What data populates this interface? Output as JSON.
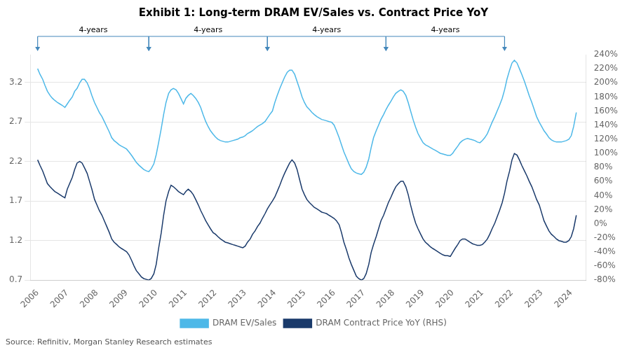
{
  "chart_data": {
    "type": "line",
    "title": "Exhibit 1: Long-term DRAM EV/Sales vs. Contract Price YoY",
    "source": "Source: Refinitiv, Morgan Stanley Research estimates",
    "annotations": [
      {
        "text": "4-years",
        "x1": 2006.0,
        "x2": 2009.75
      },
      {
        "text": "4-years",
        "x1": 2009.75,
        "x2": 2013.75
      },
      {
        "text": "4-years",
        "x1": 2013.75,
        "x2": 2017.75
      },
      {
        "text": "4-years",
        "x1": 2017.75,
        "x2": 2021.75
      }
    ],
    "xlim": [
      2005.75,
      2024.5
    ],
    "xticks": [
      2006,
      2007,
      2008,
      2009,
      2010,
      2011,
      2012,
      2013,
      2014,
      2015,
      2016,
      2017,
      2018,
      2019,
      2020,
      2021,
      2022,
      2023,
      2024
    ],
    "ylim": [
      0.7,
      3.55
    ],
    "yticks": [
      0.7,
      1.2,
      1.7,
      2.2,
      2.7,
      3.2
    ],
    "y2lim": [
      -0.8,
      2.4
    ],
    "y2ticks": [
      {
        "value": -0.8,
        "label": "-80%"
      },
      {
        "value": -0.6,
        "label": "-60%"
      },
      {
        "value": -0.4,
        "label": "-40%"
      },
      {
        "value": -0.2,
        "label": "-20%"
      },
      {
        "value": 0.0,
        "label": "0%"
      },
      {
        "value": 0.2,
        "label": "20%"
      },
      {
        "value": 0.4,
        "label": "40%"
      },
      {
        "value": 0.6,
        "label": "60%"
      },
      {
        "value": 0.8,
        "label": "80%"
      },
      {
        "value": 1.0,
        "label": "100%"
      },
      {
        "value": 1.2,
        "label": "120%"
      },
      {
        "value": 1.4,
        "label": "140%"
      },
      {
        "value": 1.6,
        "label": "160%"
      },
      {
        "value": 1.8,
        "label": "180%"
      },
      {
        "value": 2.0,
        "label": "200%"
      },
      {
        "value": 2.2,
        "label": "220%"
      },
      {
        "value": 2.4,
        "label": "240%"
      }
    ],
    "grid": "y",
    "legend": "bottom",
    "x": [
      2006.0,
      2006.08,
      2006.17,
      2006.25,
      2006.33,
      2006.42,
      2006.5,
      2006.58,
      2006.67,
      2006.75,
      2006.83,
      2006.92,
      2007.0,
      2007.08,
      2007.17,
      2007.25,
      2007.33,
      2007.42,
      2007.5,
      2007.58,
      2007.67,
      2007.75,
      2007.83,
      2007.92,
      2008.0,
      2008.08,
      2008.17,
      2008.25,
      2008.33,
      2008.42,
      2008.5,
      2008.58,
      2008.67,
      2008.75,
      2008.83,
      2008.92,
      2009.0,
      2009.08,
      2009.17,
      2009.25,
      2009.33,
      2009.42,
      2009.5,
      2009.58,
      2009.67,
      2009.75,
      2009.83,
      2009.92,
      2010.0,
      2010.08,
      2010.17,
      2010.25,
      2010.33,
      2010.42,
      2010.5,
      2010.58,
      2010.67,
      2010.75,
      2010.83,
      2010.92,
      2011.0,
      2011.08,
      2011.17,
      2011.25,
      2011.33,
      2011.42,
      2011.5,
      2011.58,
      2011.67,
      2011.75,
      2011.83,
      2011.92,
      2012.0,
      2012.08,
      2012.17,
      2012.25,
      2012.33,
      2012.42,
      2012.5,
      2012.58,
      2012.67,
      2012.75,
      2012.83,
      2012.92,
      2013.0,
      2013.08,
      2013.17,
      2013.25,
      2013.33,
      2013.42,
      2013.5,
      2013.58,
      2013.67,
      2013.75,
      2013.83,
      2013.92,
      2014.0,
      2014.08,
      2014.17,
      2014.25,
      2014.33,
      2014.42,
      2014.5,
      2014.58,
      2014.67,
      2014.75,
      2014.83,
      2014.92,
      2015.0,
      2015.08,
      2015.17,
      2015.25,
      2015.33,
      2015.42,
      2015.5,
      2015.58,
      2015.67,
      2015.75,
      2015.83,
      2015.92,
      2016.0,
      2016.08,
      2016.17,
      2016.25,
      2016.33,
      2016.42,
      2016.5,
      2016.58,
      2016.67,
      2016.75,
      2016.83,
      2016.92,
      2017.0,
      2017.08,
      2017.17,
      2017.25,
      2017.33,
      2017.42,
      2017.5,
      2017.58,
      2017.67,
      2017.75,
      2017.83,
      2017.92,
      2018.0,
      2018.08,
      2018.17,
      2018.25,
      2018.33,
      2018.42,
      2018.5,
      2018.58,
      2018.67,
      2018.75,
      2018.83,
      2018.92,
      2019.0,
      2019.08,
      2019.17,
      2019.25,
      2019.33,
      2019.42,
      2019.5,
      2019.58,
      2019.67,
      2019.75,
      2019.83,
      2019.92,
      2020.0,
      2020.08,
      2020.17,
      2020.25,
      2020.33,
      2020.42,
      2020.5,
      2020.58,
      2020.67,
      2020.75,
      2020.83,
      2020.92,
      2021.0,
      2021.08,
      2021.17,
      2021.25,
      2021.33,
      2021.42,
      2021.5,
      2021.58,
      2021.67,
      2021.75,
      2021.83,
      2021.92,
      2022.0,
      2022.08,
      2022.17,
      2022.25,
      2022.33,
      2022.42,
      2022.5,
      2022.58,
      2022.67,
      2022.75,
      2022.83,
      2022.92,
      2023.0,
      2023.08,
      2023.17,
      2023.25,
      2023.33,
      2023.42,
      2023.5,
      2023.58,
      2023.67,
      2023.75,
      2023.83,
      2023.92,
      2024.0,
      2024.08,
      2024.17
    ],
    "series": [
      {
        "name": "DRAM Contract Price YoY (RHS)",
        "color": "#1a3a6b",
        "values": [
          2.22,
          2.15,
          2.08,
          2.0,
          1.92,
          1.88,
          1.85,
          1.82,
          1.8,
          1.78,
          1.76,
          1.74,
          1.85,
          1.92,
          2.0,
          2.1,
          2.18,
          2.2,
          2.18,
          2.12,
          2.05,
          1.95,
          1.85,
          1.72,
          1.65,
          1.58,
          1.52,
          1.45,
          1.38,
          1.3,
          1.22,
          1.18,
          1.15,
          1.12,
          1.1,
          1.08,
          1.06,
          1.02,
          0.95,
          0.88,
          0.82,
          0.78,
          0.74,
          0.72,
          0.71,
          0.7,
          0.72,
          0.78,
          0.9,
          1.1,
          1.3,
          1.52,
          1.7,
          1.82,
          1.9,
          1.88,
          1.85,
          1.82,
          1.8,
          1.78,
          1.82,
          1.85,
          1.82,
          1.78,
          1.72,
          1.65,
          1.58,
          1.52,
          1.45,
          1.4,
          1.35,
          1.3,
          1.28,
          1.25,
          1.22,
          1.2,
          1.18,
          1.17,
          1.16,
          1.15,
          1.14,
          1.13,
          1.12,
          1.11,
          1.13,
          1.18,
          1.22,
          1.28,
          1.32,
          1.38,
          1.42,
          1.48,
          1.54,
          1.6,
          1.65,
          1.7,
          1.75,
          1.82,
          1.9,
          1.98,
          2.05,
          2.12,
          2.18,
          2.22,
          2.18,
          2.1,
          1.98,
          1.85,
          1.78,
          1.72,
          1.68,
          1.65,
          1.62,
          1.6,
          1.58,
          1.56,
          1.55,
          1.54,
          1.52,
          1.5,
          1.48,
          1.45,
          1.4,
          1.3,
          1.18,
          1.08,
          0.98,
          0.9,
          0.82,
          0.75,
          0.72,
          0.7,
          0.72,
          0.78,
          0.9,
          1.05,
          1.15,
          1.25,
          1.35,
          1.45,
          1.52,
          1.6,
          1.68,
          1.75,
          1.82,
          1.88,
          1.92,
          1.95,
          1.95,
          1.88,
          1.78,
          1.65,
          1.52,
          1.42,
          1.35,
          1.28,
          1.22,
          1.18,
          1.15,
          1.12,
          1.1,
          1.08,
          1.06,
          1.04,
          1.02,
          1.01,
          1.01,
          1.0,
          1.05,
          1.1,
          1.15,
          1.2,
          1.22,
          1.22,
          1.2,
          1.18,
          1.16,
          1.15,
          1.14,
          1.14,
          1.15,
          1.18,
          1.22,
          1.28,
          1.35,
          1.42,
          1.5,
          1.58,
          1.68,
          1.8,
          1.95,
          2.08,
          2.22,
          2.3,
          2.28,
          2.22,
          2.15,
          2.08,
          2.02,
          1.95,
          1.88,
          1.8,
          1.72,
          1.65,
          1.55,
          1.45,
          1.38,
          1.32,
          1.28,
          1.25,
          1.22,
          1.2,
          1.19,
          1.18,
          1.18,
          1.2,
          1.25,
          1.35,
          1.52
        ]
      },
      {
        "name": "DRAM EV/Sales",
        "color": "#4db8e8",
        "axis": "y2",
        "values": [
          2.2,
          2.12,
          2.05,
          1.96,
          1.88,
          1.82,
          1.78,
          1.75,
          1.72,
          1.7,
          1.68,
          1.65,
          1.7,
          1.75,
          1.8,
          1.88,
          1.92,
          2.0,
          2.05,
          2.05,
          2.0,
          1.92,
          1.82,
          1.72,
          1.65,
          1.58,
          1.52,
          1.45,
          1.38,
          1.3,
          1.22,
          1.18,
          1.15,
          1.12,
          1.1,
          1.08,
          1.06,
          1.02,
          0.97,
          0.92,
          0.87,
          0.83,
          0.8,
          0.77,
          0.75,
          0.74,
          0.78,
          0.85,
          0.98,
          1.15,
          1.35,
          1.55,
          1.72,
          1.85,
          1.9,
          1.92,
          1.9,
          1.85,
          1.78,
          1.7,
          1.78,
          1.82,
          1.85,
          1.82,
          1.78,
          1.72,
          1.65,
          1.55,
          1.45,
          1.38,
          1.32,
          1.27,
          1.23,
          1.2,
          1.18,
          1.17,
          1.16,
          1.16,
          1.17,
          1.18,
          1.19,
          1.2,
          1.22,
          1.23,
          1.25,
          1.28,
          1.3,
          1.32,
          1.35,
          1.38,
          1.4,
          1.42,
          1.45,
          1.5,
          1.55,
          1.6,
          1.72,
          1.82,
          1.92,
          2.0,
          2.08,
          2.15,
          2.18,
          2.18,
          2.12,
          2.02,
          1.92,
          1.8,
          1.72,
          1.66,
          1.62,
          1.58,
          1.55,
          1.52,
          1.5,
          1.48,
          1.47,
          1.46,
          1.45,
          1.44,
          1.4,
          1.32,
          1.22,
          1.12,
          1.02,
          0.93,
          0.85,
          0.78,
          0.74,
          0.72,
          0.71,
          0.7,
          0.73,
          0.8,
          0.92,
          1.08,
          1.22,
          1.32,
          1.4,
          1.48,
          1.55,
          1.62,
          1.68,
          1.74,
          1.8,
          1.85,
          1.88,
          1.9,
          1.88,
          1.82,
          1.72,
          1.6,
          1.47,
          1.37,
          1.28,
          1.21,
          1.15,
          1.12,
          1.1,
          1.08,
          1.06,
          1.04,
          1.02,
          1.0,
          0.99,
          0.98,
          0.97,
          0.97,
          1.0,
          1.05,
          1.1,
          1.15,
          1.18,
          1.2,
          1.21,
          1.2,
          1.19,
          1.18,
          1.16,
          1.15,
          1.18,
          1.22,
          1.28,
          1.36,
          1.44,
          1.52,
          1.6,
          1.68,
          1.78,
          1.9,
          2.05,
          2.18,
          2.28,
          2.32,
          2.28,
          2.2,
          2.12,
          2.02,
          1.92,
          1.82,
          1.72,
          1.62,
          1.52,
          1.44,
          1.38,
          1.32,
          1.27,
          1.22,
          1.19,
          1.17,
          1.16,
          1.16,
          1.16,
          1.17,
          1.18,
          1.2,
          1.25,
          1.38,
          1.58
        ]
      }
    ]
  }
}
